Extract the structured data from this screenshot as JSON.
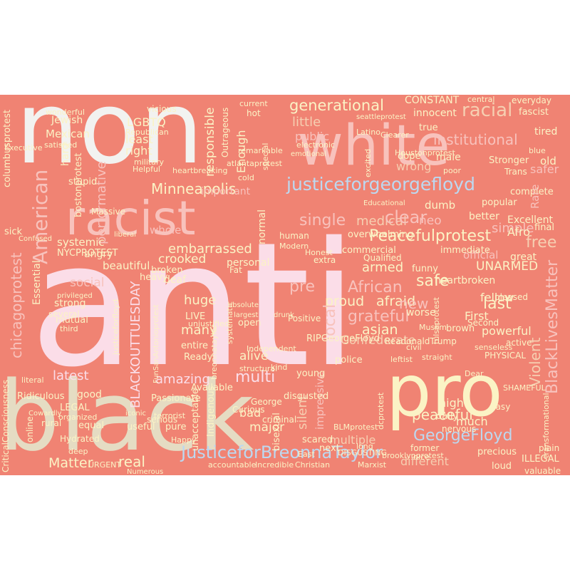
{
  "palette": {
    "background": "#f08373",
    "white": "#f2f2f0",
    "pink": "#fbdde8",
    "beige": "#e5dcc3",
    "cream": "#fbf3c5",
    "rose": "#f8c2bc",
    "lightblue": "#bcd8f0",
    "peach": "#f6cfb1",
    "yellow": "#f7eaa8",
    "blush": "#f5b5ad"
  },
  "words": {
    "anti": "anti",
    "non": "non",
    "black": "black",
    "pro": "pro",
    "white": "white",
    "racist": "racist",
    "justiceforgeorgefloyd": "justiceforgeorgefloyd",
    "blacklivesmatter": "BlackLivesMatter",
    "justiceforbreonnataylor": "JusticeforBreonnaTaylor",
    "georgefloyd": "GeorgeFloyd",
    "peacefulprotest": "Peacefulprotest",
    "generational": "generational",
    "institutional": "institutional",
    "racial": "racial",
    "american": "American",
    "minneapolis": "Minneapolis",
    "blackouttuesday": "BLACKOUTTUESDAY",
    "chicagoprotest": "chicagoprotest",
    "embarrassed": "embarrassed",
    "peaceful": "peaceful",
    "violent": "Violent",
    "african": "African",
    "grateful": "grateful",
    "confederate": "Confederate",
    "performative": "performative",
    "responsible": "responsible",
    "lgbtq": "LGBTQ",
    "least": "least",
    "right": "right",
    "little": "little",
    "public": "public",
    "wrong": "wrong",
    "single": "single",
    "medical": "medical",
    "clear": "clear",
    "free": "free",
    "unarmed": "UNARMED",
    "armed": "armed",
    "safe": "safe",
    "proud": "proud",
    "afraid": "afraid",
    "local": "local",
    "pre": "pre",
    "full": "full",
    "social": "social",
    "huge": "huge",
    "many": "many",
    "multi": "multi",
    "amazing": "amazing",
    "latest": "latest",
    "good": "good",
    "matter": "Matter",
    "real": "real",
    "silent": "silent",
    "impressive": "impressive",
    "multiple": "multiple",
    "different": "different",
    "last": "last",
    "first": "First",
    "powerful": "powerful",
    "fellow": "fellow",
    "asian": "asian",
    "new": "new",
    "crooked": "crooked",
    "whole": "whole",
    "beautiful": "beautiful",
    "systemic": "systemic",
    "angry": "angry",
    "important": "important",
    "hard": "hard",
    "enough": "Enough",
    "mexican": "Mexican",
    "jewish": "Jewish",
    "constant": "CONSTANT",
    "innocent": "innocent",
    "neo": "neo",
    "simple": "simple",
    "official": "official",
    "excellent": "Excellent",
    "heartbroken": "heartbroken",
    "alive": "alive",
    "nycprotest": "NYCPROTEST",
    "legal": "LEGAL",
    "major": "major",
    "bad": "bad",
    "much": "much",
    "high": "high",
    "tired": "tired",
    "fascist": "fascist",
    "everyday": "everyday",
    "old": "old",
    "brown": "brown",
    "personal": "personal",
    "normal": "normal",
    "strong": "strong",
    "deaf": "deaf",
    "broken": "broken",
    "live": "LIVE",
    "entire": "entire",
    "ready": "Ready",
    "available": "Available",
    "passionate": "Passionate",
    "useful": "useful",
    "pure": "pure",
    "equal": "equal",
    "ridiculous": "Ridiculous",
    "essential": "Essential",
    "bostonprotest": "bostonprotest",
    "columbusprotest": "columbusprotest",
    "sick": "sick",
    "stupid": "stupid",
    "massive": "Massive",
    "heavy": "heavy",
    "daily": "daily",
    "disgusted": "disgusted",
    "young": "young",
    "police": "police",
    "open": "open",
    "unacceptable": "unacceptable",
    "bisexual": "bisexual",
    "scared": "scared",
    "next": "next",
    "precious": "precious",
    "loud": "loud",
    "illegal": "ILLEGAL",
    "valuable": "valuable",
    "indigenous": "Indigenous",
    "serious": "serious",
    "hydrated": "Hydrated",
    "online": "online",
    "rural": "rural",
    "mutual": "mutual",
    "several": "several",
    "criticalconsciousness": "CriticalConsciousness",
    "curious": "Curious",
    "criminal": "criminal",
    "george": "George",
    "safer": "safer",
    "male": "male",
    "true": "true",
    "dope": "dope",
    "overwhelming": "overwhelming",
    "dumb": "dumb",
    "better": "better",
    "complete": "complete",
    "popular": "popular",
    "afro": "Afro",
    "final": "final",
    "great": "great",
    "active": "active",
    "pleased": "pleased",
    "immediate": "immediate",
    "commercial": "commercial",
    "qualified": "Qualified",
    "funny": "funny",
    "worse": "worse",
    "fat": "Fat",
    "positive": "Positive",
    "physical": "PHYSICAL",
    "second": "Second",
    "third": "third",
    "literal": "literal",
    "organized": "organized",
    "executive": "Executive",
    "satisfied": "satisfied",
    "republican": "Republican",
    "military": "military",
    "helpful": "Helpful",
    "terrorist": "terrorist",
    "happy": "Happy",
    "deep": "deep",
    "urgent": "URGENT",
    "incredible": "Incredible",
    "christian": "Christian",
    "marxist": "Marxist",
    "accountable": "accountable",
    "east": "East",
    "nervous": "nervous",
    "former": "former",
    "easy": "Easy",
    "plain": "plain",
    "transformational": "transformational",
    "shameful": "SHAMEFUL",
    "cold": "cold",
    "hot": "hot",
    "central": "central",
    "vicious": "vicious",
    "wonderful": "wonderful",
    "current": "current",
    "special": "special",
    "remarkable": "remarkable",
    "outrageous": "Outrageous",
    "heartbreaking": "heartbreaking",
    "extra": "extra",
    "human": "human",
    "modern": "Modern",
    "honest": "Honest",
    "atlantaprotest": "atlantaprotest",
    "seattleprotest": "seattleprotest",
    "electronic": "electronic",
    "emotional": "emotional",
    "excited": "excited",
    "latino": "Latino",
    "clearer": "Clearer",
    "stronger": "Stronger",
    "trans": "Trans",
    "blue": "blue",
    "poor": "poor",
    "rare": "Rare",
    "bignorantdonaldtrump": "ReadonaldTrump",
    "houstonprotest": "Houstonprotest",
    "dcprotest": "dcprotest",
    "tulsaprotest": "tulsaprotest",
    "brooklynprotest": "brooklynprotest",
    "blmprotest": "BLMprotest",
    "rigeorgefloyd": "RIPGeorgeFloyd",
    "breonnataylor": "breonnataylor",
    "funsanantonio": "FunSanAntonioprotest",
    "justiceforfloyd": "justiceforfloyd",
    "systematic": "systematic",
    "unjustified": "unjustified",
    "structural": "structural",
    "kind": "kind",
    "disgusting": "DISGUSTING",
    "long": "long",
    "nice": "nice",
    "cowardly": "Cowardly",
    "iconic": "iconic",
    "numerous": "Numerous",
    "dear": "Dear",
    "modest": "Muslim",
    "independent": "Independent",
    "leftist": "leftist",
    "civil": "civil",
    "straight": "straight",
    "senseless": "senseless",
    "beneficial": "Educational",
    "liberal": "liberal",
    "confused": "Confused",
    "privileged": "privileged",
    "absolute": "absolute",
    "largest": "largest",
    "drunk": "drunk"
  }
}
